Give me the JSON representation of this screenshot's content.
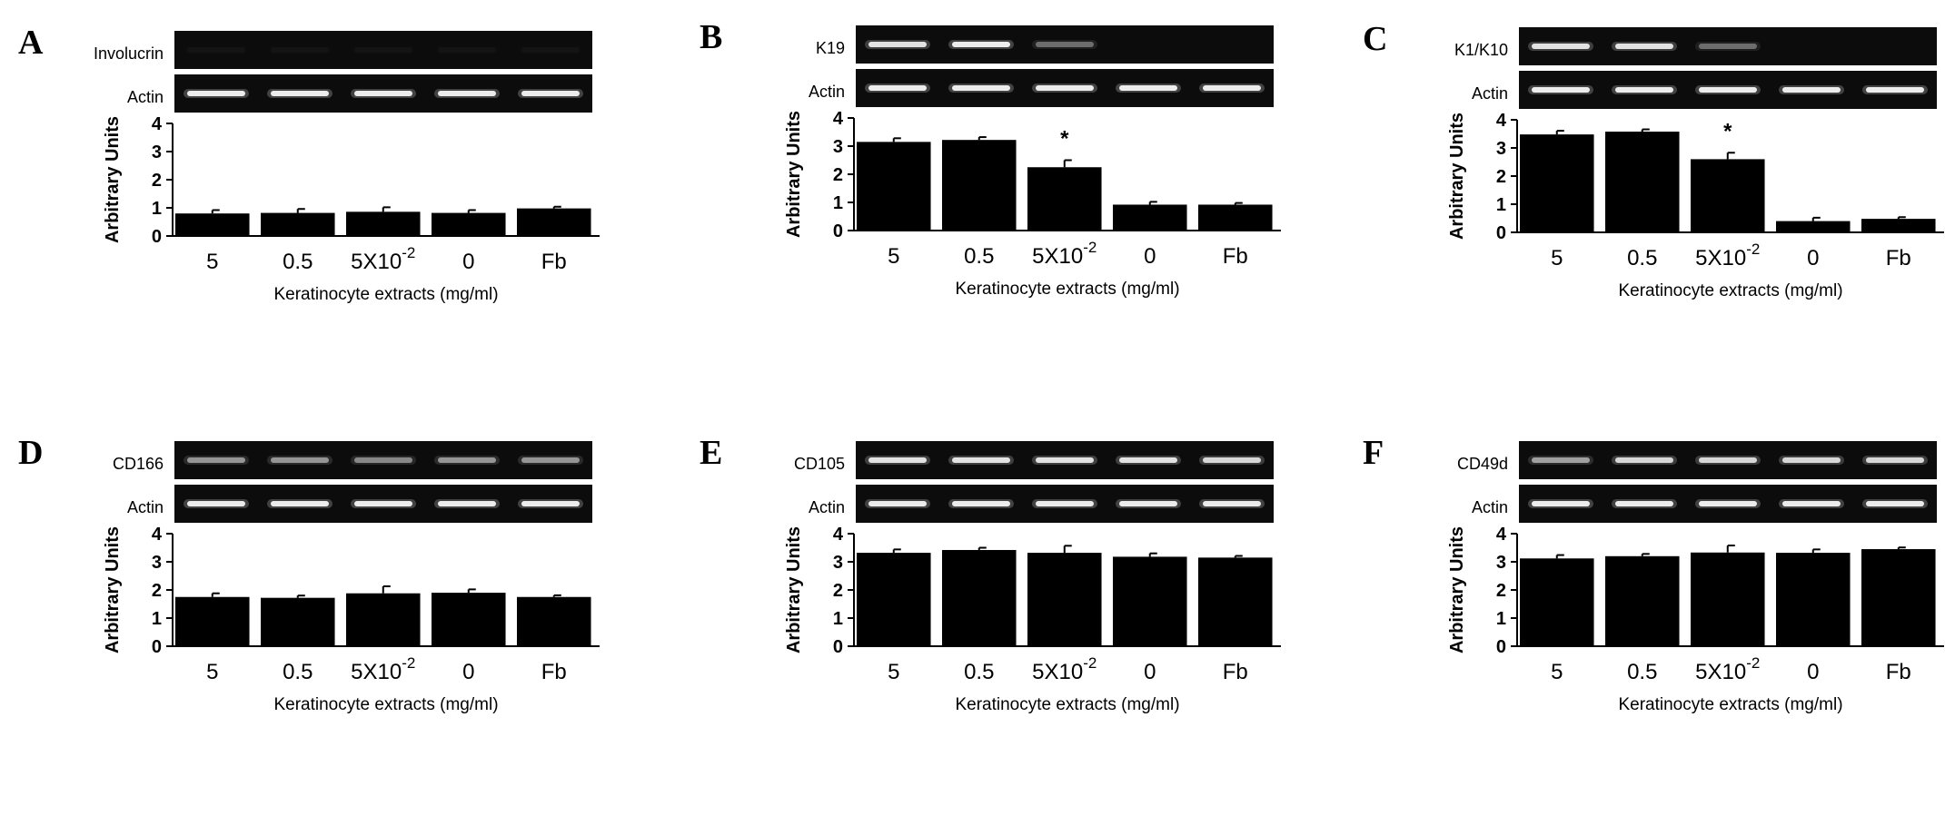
{
  "figure": {
    "panels": [
      {
        "letter": "A",
        "gel_label_1": "Involucrin",
        "gel_label_2": "Actin"
      },
      {
        "letter": "B",
        "gel_label_1": "K19",
        "gel_label_2": "Actin"
      },
      {
        "letter": "C",
        "gel_label_1": "K1/K10",
        "gel_label_2": "Actin"
      },
      {
        "letter": "D",
        "gel_label_1": "CD166",
        "gel_label_2": "Actin"
      },
      {
        "letter": "E",
        "gel_label_1": "CD105",
        "gel_label_2": "Actin"
      },
      {
        "letter": "F",
        "gel_label_1": "CD49d",
        "gel_label_2": "Actin"
      }
    ]
  },
  "chart_data": [
    {
      "type": "bar",
      "panel": "A",
      "title": "",
      "categories": [
        "5",
        "0.5",
        "5X10-2",
        "0",
        "Fb"
      ],
      "values": [
        0.8,
        0.82,
        0.86,
        0.82,
        0.98
      ],
      "errors": [
        0.12,
        0.14,
        0.16,
        0.1,
        0.06
      ],
      "significance": [
        "",
        "",
        "",
        "",
        ""
      ],
      "xlabel": "Keratinocyte extracts (mg/ml)",
      "ylabel": "Arbitrary Units",
      "ylim": [
        0,
        4
      ],
      "yticks": [
        "0",
        "1",
        "2",
        "3",
        "4"
      ],
      "band_intensity_1": [
        0.03,
        0.03,
        0.03,
        0.03,
        0.03
      ],
      "band_intensity_2": [
        0.9,
        0.9,
        0.9,
        0.9,
        0.9
      ]
    },
    {
      "type": "bar",
      "panel": "B",
      "title": "",
      "categories": [
        "5",
        "0.5",
        "5X10-2",
        "0",
        "Fb"
      ],
      "values": [
        3.15,
        3.22,
        2.25,
        0.92,
        0.92
      ],
      "errors": [
        0.13,
        0.1,
        0.25,
        0.1,
        0.06
      ],
      "significance": [
        "",
        "",
        "*",
        "",
        ""
      ],
      "xlabel": "Keratinocyte extracts (mg/ml)",
      "ylabel": "Arbitrary Units",
      "ylim": [
        0,
        4
      ],
      "yticks": [
        "0",
        "1",
        "2",
        "3",
        "4"
      ],
      "band_intensity_1": [
        0.85,
        0.9,
        0.35,
        0.0,
        0.0
      ],
      "band_intensity_2": [
        0.9,
        0.9,
        0.9,
        0.9,
        0.9
      ]
    },
    {
      "type": "bar",
      "panel": "C",
      "title": "",
      "categories": [
        "5",
        "0.5",
        "5X10-2",
        "0",
        "Fb"
      ],
      "values": [
        3.48,
        3.58,
        2.6,
        0.4,
        0.48
      ],
      "errors": [
        0.13,
        0.08,
        0.23,
        0.12,
        0.06
      ],
      "significance": [
        "",
        "",
        "*",
        "",
        ""
      ],
      "xlabel": "Keratinocyte extracts (mg/ml)",
      "ylabel": "Arbitrary Units",
      "ylim": [
        0,
        4
      ],
      "yticks": [
        "0",
        "1",
        "2",
        "3",
        "4"
      ],
      "band_intensity_1": [
        0.85,
        0.85,
        0.35,
        0.0,
        0.0
      ],
      "band_intensity_2": [
        0.9,
        0.9,
        0.9,
        0.9,
        0.9
      ]
    },
    {
      "type": "bar",
      "panel": "D",
      "title": "",
      "categories": [
        "5",
        "0.5",
        "5X10-2",
        "0",
        "Fb"
      ],
      "values": [
        1.75,
        1.72,
        1.88,
        1.9,
        1.75
      ],
      "errors": [
        0.13,
        0.08,
        0.25,
        0.12,
        0.06
      ],
      "significance": [
        "",
        "",
        "",
        "",
        ""
      ],
      "xlabel": "Keratinocyte extracts (mg/ml)",
      "ylabel": "Arbitrary Units",
      "ylim": [
        0,
        4
      ],
      "yticks": [
        "0",
        "1",
        "2",
        "3",
        "4"
      ],
      "band_intensity_1": [
        0.5,
        0.5,
        0.45,
        0.5,
        0.5
      ],
      "band_intensity_2": [
        0.9,
        0.9,
        0.9,
        0.9,
        0.9
      ]
    },
    {
      "type": "bar",
      "panel": "E",
      "title": "",
      "categories": [
        "5",
        "0.5",
        "5X10-2",
        "0",
        "Fb"
      ],
      "values": [
        3.32,
        3.42,
        3.32,
        3.18,
        3.15
      ],
      "errors": [
        0.12,
        0.08,
        0.25,
        0.12,
        0.06
      ],
      "significance": [
        "",
        "",
        "",
        "",
        ""
      ],
      "xlabel": "Keratinocyte extracts (mg/ml)",
      "ylabel": "Arbitrary Units",
      "ylim": [
        0,
        4
      ],
      "yticks": [
        "0",
        "1",
        "2",
        "3",
        "4"
      ],
      "band_intensity_1": [
        0.85,
        0.85,
        0.85,
        0.85,
        0.8
      ],
      "band_intensity_2": [
        0.9,
        0.9,
        0.9,
        0.9,
        0.9
      ]
    },
    {
      "type": "bar",
      "panel": "F",
      "title": "",
      "categories": [
        "5",
        "0.5",
        "5X10-2",
        "0",
        "Fb"
      ],
      "values": [
        3.12,
        3.2,
        3.33,
        3.32,
        3.45
      ],
      "errors": [
        0.12,
        0.08,
        0.25,
        0.12,
        0.06
      ],
      "significance": [
        "",
        "",
        "",
        "",
        ""
      ],
      "xlabel": "Keratinocyte extracts (mg/ml)",
      "ylabel": "Arbitrary Units",
      "ylim": [
        0,
        4
      ],
      "yticks": [
        "0",
        "1",
        "2",
        "3",
        "4"
      ],
      "band_intensity_1": [
        0.55,
        0.8,
        0.8,
        0.8,
        0.8
      ],
      "band_intensity_2": [
        0.9,
        0.9,
        0.9,
        0.9,
        0.9
      ]
    }
  ]
}
